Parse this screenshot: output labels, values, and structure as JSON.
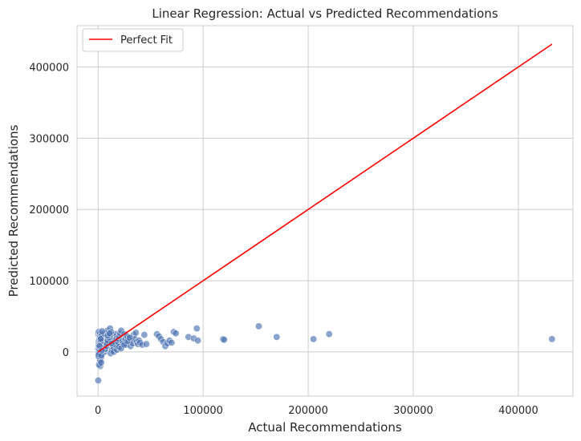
{
  "chart_data": {
    "type": "scatter",
    "title": "Linear Regression: Actual vs Predicted Recommendations",
    "xlabel": "Actual Recommendations",
    "ylabel": "Predicted Recommendations",
    "xlim": [
      -20000,
      452000
    ],
    "ylim": [
      -62000,
      458000
    ],
    "xticks": [
      0,
      100000,
      200000,
      300000,
      400000
    ],
    "yticks": [
      0,
      100000,
      200000,
      300000,
      400000
    ],
    "xtick_labels": [
      "0",
      "100000",
      "200000",
      "300000",
      "400000"
    ],
    "ytick_labels": [
      "0",
      "100000",
      "200000",
      "300000",
      "400000"
    ],
    "grid": true,
    "legend": {
      "position": "top-left",
      "entries": [
        "Perfect Fit"
      ]
    },
    "colors": {
      "points": "#4c72b0",
      "line": "#ff0000",
      "grid": "#cccccc",
      "frame": "#cccccc"
    },
    "reference_line": {
      "name": "Perfect Fit",
      "x": [
        0,
        432000
      ],
      "y": [
        0,
        432000
      ]
    },
    "points": {
      "x": [
        0,
        500,
        800,
        1000,
        1200,
        300,
        600,
        900,
        1500,
        1800,
        2000,
        2500,
        3000,
        3500,
        4000,
        4500,
        5000,
        500,
        1000,
        1500,
        2000,
        2500,
        3000,
        3500,
        4000,
        700,
        1100,
        1600,
        2100,
        2600,
        3100,
        3600,
        4100,
        4600,
        5200,
        5800,
        6500,
        7000,
        7500,
        8000,
        8500,
        9000,
        9500,
        10000,
        10500,
        11000,
        11500,
        12000,
        12500,
        13000,
        13500,
        14000,
        14500,
        15000,
        15500,
        16000,
        16500,
        17000,
        17500,
        18000,
        6000,
        6800,
        7600,
        8400,
        9200,
        10800,
        11600,
        12400,
        13200,
        14800,
        16800,
        18800,
        19500,
        20000,
        21000,
        22000,
        23000,
        24000,
        25000,
        26000,
        27000,
        28000,
        29000,
        30000,
        31000,
        32000,
        33000,
        34000,
        35000,
        36000,
        37000,
        38000,
        39000,
        40000,
        42000,
        44000,
        46000,
        1000,
        2000,
        3000,
        200,
        400,
        800,
        1300,
        1700,
        2200,
        2800,
        3300,
        3800,
        600,
        1400,
        2400,
        3000,
        3500,
        12000,
        15000,
        18000,
        20000,
        22000,
        25000,
        28000,
        30000,
        9000,
        11000,
        13000,
        56000,
        58000,
        60000,
        62000,
        64000,
        66000,
        68000,
        70000,
        72000,
        74000,
        86000,
        91000,
        94000,
        95000,
        119000,
        120000,
        153000,
        170000,
        205000,
        220000,
        432000
      ],
      "y": [
        5000,
        8000,
        12000,
        15000,
        20000,
        25000,
        28000,
        -5000,
        -10000,
        -15000,
        -20000,
        10000,
        18000,
        22000,
        -3000,
        2000,
        6000,
        14000,
        16000,
        24000,
        26000,
        4000,
        -8000,
        12000,
        20000,
        9000,
        -2000,
        17000,
        21000,
        13000,
        7000,
        3000,
        23000,
        11000,
        19000,
        15000,
        27000,
        25000,
        8000,
        12000,
        5000,
        30000,
        22000,
        18000,
        14000,
        10000,
        33000,
        6000,
        20000,
        16000,
        24000,
        9000,
        3000,
        21000,
        13000,
        17000,
        7000,
        25000,
        11000,
        19000,
        0,
        4000,
        8000,
        12000,
        16000,
        20000,
        24000,
        28000,
        2000,
        6000,
        10000,
        14000,
        18000,
        22000,
        26000,
        30000,
        15000,
        12000,
        25000,
        18000,
        10000,
        22000,
        14000,
        20000,
        8000,
        16000,
        12000,
        24000,
        18000,
        27000,
        14000,
        11000,
        16000,
        13000,
        10000,
        24000,
        11000,
        -18000,
        -12000,
        -15000,
        -40000,
        -6000,
        -1000,
        4000,
        9000,
        14000,
        19000,
        24000,
        29000,
        -4000,
        8000,
        18000,
        -5000,
        2000,
        -2000,
        0,
        3000,
        7000,
        5000,
        10000,
        15000,
        20000,
        23000,
        26000,
        12000,
        25000,
        22000,
        18000,
        14000,
        8000,
        12000,
        16000,
        13000,
        28000,
        26000,
        21000,
        19000,
        33000,
        16000,
        18000,
        17000,
        36000,
        21000,
        18000,
        25000,
        18000
      ]
    }
  }
}
